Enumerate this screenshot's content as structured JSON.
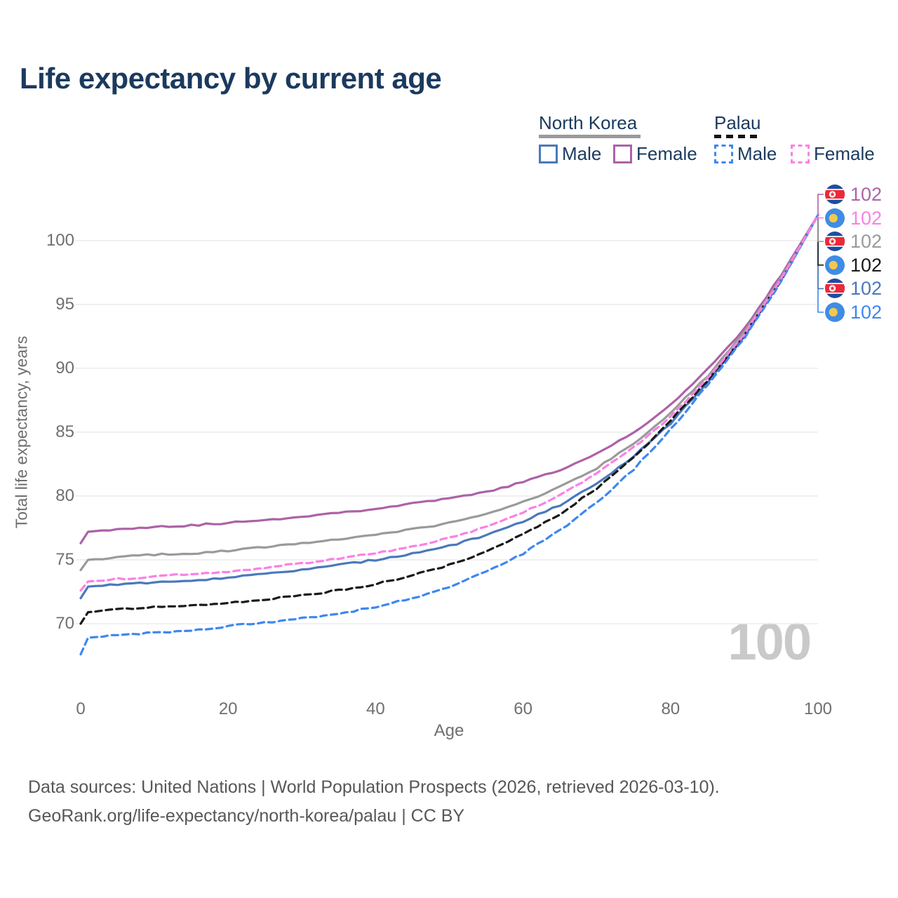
{
  "title": "Life expectancy by current age",
  "legend": {
    "groups": [
      {
        "label": "North Korea",
        "line_style": "solid",
        "underline_color": "#9a9a9a",
        "items": [
          {
            "label": "Male",
            "color": "#4a79ba",
            "dashed": false
          },
          {
            "label": "Female",
            "color": "#ad62a7",
            "dashed": false
          }
        ]
      },
      {
        "label": "Palau",
        "line_style": "dashed",
        "underline_color": "#141414",
        "items": [
          {
            "label": "Male",
            "color": "#3e87f2",
            "dashed": true
          },
          {
            "label": "Female",
            "color": "#fb80e4",
            "dashed": true
          }
        ]
      }
    ]
  },
  "axes": {
    "x_label": "Age",
    "y_label": "Total life expectancy, years",
    "x_ticks": [
      "0",
      "20",
      "40",
      "60",
      "80",
      "100"
    ],
    "y_ticks": [
      "70",
      "75",
      "80",
      "85",
      "90",
      "95",
      "100"
    ]
  },
  "watermark": "100",
  "chart_data": {
    "type": "line",
    "title": "Life expectancy by current age",
    "xlabel": "Age",
    "ylabel": "Total life expectancy, years",
    "xlim": [
      0,
      100
    ],
    "ylim": [
      67,
      103
    ],
    "x_ticks": [
      0,
      20,
      40,
      60,
      80,
      100
    ],
    "y_ticks": [
      70,
      75,
      80,
      85,
      90,
      95,
      100
    ],
    "grid": "horizontal",
    "legend_position": "top-right",
    "x": [
      0,
      1,
      5,
      10,
      15,
      20,
      25,
      30,
      35,
      40,
      45,
      50,
      55,
      60,
      65,
      70,
      75,
      80,
      85,
      90,
      95,
      100
    ],
    "series": [
      {
        "name": "North Korea — Female",
        "country": "North Korea",
        "sex": "Female",
        "color": "#ad62a7",
        "dashed": false,
        "end_label": "102",
        "values": [
          76.3,
          77.2,
          77.4,
          77.6,
          77.7,
          77.9,
          78.1,
          78.4,
          78.7,
          79.0,
          79.4,
          79.8,
          80.3,
          81.1,
          82.0,
          83.3,
          85.0,
          87.1,
          89.9,
          93.1,
          97.3,
          102
        ]
      },
      {
        "name": "North Korea — Both sexes",
        "country": "North Korea",
        "sex": "Both",
        "color": "#9a9a9a",
        "dashed": false,
        "end_label": "102",
        "values": [
          74.2,
          75.0,
          75.2,
          75.4,
          75.5,
          75.7,
          76.0,
          76.3,
          76.6,
          77.0,
          77.4,
          77.9,
          78.6,
          79.5,
          80.7,
          82.2,
          84.1,
          86.5,
          89.4,
          92.8,
          97.1,
          102
        ]
      },
      {
        "name": "North Korea — Male",
        "country": "North Korea",
        "sex": "Male",
        "color": "#4a79ba",
        "dashed": false,
        "end_label": "102",
        "values": [
          72.0,
          72.9,
          73.1,
          73.2,
          73.4,
          73.6,
          73.9,
          74.2,
          74.6,
          75.0,
          75.5,
          76.1,
          76.9,
          78.0,
          79.3,
          81.0,
          83.1,
          85.7,
          88.9,
          92.5,
          96.9,
          102
        ]
      },
      {
        "name": "Palau — Female",
        "country": "Palau",
        "sex": "Female",
        "color": "#fb80e4",
        "dashed": true,
        "end_label": "102",
        "values": [
          72.6,
          73.3,
          73.5,
          73.7,
          73.9,
          74.1,
          74.4,
          74.7,
          75.1,
          75.5,
          76.0,
          76.7,
          77.6,
          78.7,
          80.1,
          81.8,
          83.8,
          86.2,
          89.2,
          92.7,
          97.0,
          102
        ]
      },
      {
        "name": "Palau — Both sexes",
        "country": "Palau",
        "sex": "Both",
        "color": "#1a1a1a",
        "dashed": true,
        "end_label": "102",
        "values": [
          70.0,
          70.9,
          71.1,
          71.3,
          71.4,
          71.6,
          71.9,
          72.2,
          72.6,
          73.1,
          73.8,
          74.6,
          75.6,
          77.0,
          78.6,
          80.6,
          83.0,
          85.9,
          89.0,
          92.6,
          96.9,
          102
        ]
      },
      {
        "name": "Palau — Male",
        "country": "Palau",
        "sex": "Male",
        "color": "#3e87f2",
        "dashed": true,
        "end_label": "102",
        "values": [
          67.6,
          68.9,
          69.1,
          69.3,
          69.5,
          69.8,
          70.1,
          70.4,
          70.8,
          71.3,
          72.0,
          72.9,
          74.1,
          75.5,
          77.3,
          79.5,
          82.1,
          85.2,
          88.7,
          92.4,
          96.8,
          102
        ]
      }
    ]
  },
  "right_labels": [
    {
      "flag": "north-korea",
      "value": "102",
      "color": "#ad62a7"
    },
    {
      "flag": "palau",
      "value": "102",
      "color": "#fb80e4"
    },
    {
      "flag": "north-korea",
      "value": "102",
      "color": "#9a9a9a"
    },
    {
      "flag": "palau",
      "value": "102",
      "color": "#1a1a1a"
    },
    {
      "flag": "north-korea",
      "value": "102",
      "color": "#4a79ba"
    },
    {
      "flag": "palau",
      "value": "102",
      "color": "#3e87f2"
    }
  ],
  "footer": {
    "line1": "Data sources: United Nations | World Population Prospects (2026, retrieved 2026-03-10).",
    "line2": "GeoRank.org/life-expectancy/north-korea/palau | CC BY"
  },
  "colors": {
    "title": "#1b3a5e",
    "axis_text": "#6f6f6f",
    "gridline": "#ececec",
    "watermark": "#c9c9c9",
    "footer_text": "#575757",
    "nk_flag_blue": "#1d4e9e",
    "nk_flag_red": "#ed2939",
    "palau_flag_blue": "#3f8ce4",
    "palau_flag_yellow": "#f2c94c"
  }
}
